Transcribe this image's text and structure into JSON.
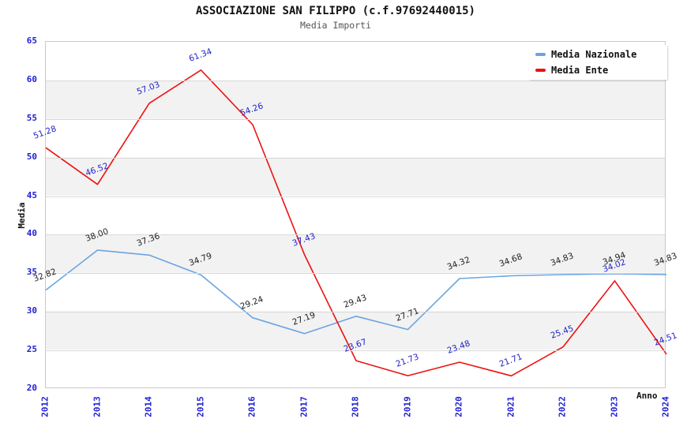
{
  "header": {
    "title": "ASSOCIAZIONE SAN FILIPPO (c.f.97692440015)",
    "subtitle": "Media Importi"
  },
  "chart_data": {
    "type": "line",
    "title": "ASSOCIAZIONE SAN FILIPPO (c.f.97692440015)",
    "subtitle": "Media Importi",
    "xlabel": "Anno",
    "ylabel": "Media",
    "ylim": [
      20,
      65
    ],
    "y_ticks": [
      20,
      25,
      30,
      35,
      40,
      45,
      50,
      55,
      60,
      65
    ],
    "x": [
      "2012",
      "2013",
      "2014",
      "2015",
      "2016",
      "2017",
      "2018",
      "2019",
      "2020",
      "2021",
      "2022",
      "2023",
      "2024"
    ],
    "grid": "horizontal-bands",
    "legend_position": "top-right",
    "series": [
      {
        "name": "Media Nazionale",
        "color": "#6aa5e0",
        "value_label_color": "#222222",
        "values": [
          32.82,
          38.0,
          37.36,
          34.79,
          29.24,
          27.19,
          29.43,
          27.71,
          34.32,
          34.68,
          34.83,
          34.94,
          34.83
        ],
        "labels": [
          "32.82",
          "38.00",
          "37.36",
          "34.79",
          "29.24",
          "27.19",
          "29.43",
          "27.71",
          "34.32",
          "34.68",
          "34.83",
          "34.94",
          "34.83"
        ]
      },
      {
        "name": "Media Ente",
        "color": "#ee1111",
        "value_label_color": "#1f1fc8",
        "values": [
          51.28,
          46.52,
          57.03,
          61.34,
          54.26,
          37.43,
          23.67,
          21.73,
          23.48,
          21.71,
          25.45,
          34.02,
          24.51
        ],
        "labels": [
          "51.28",
          "46.52",
          "57.03",
          "61.34",
          "54.26",
          "37.43",
          "23.67",
          "21.73",
          "23.48",
          "21.71",
          "25.45",
          "34.02",
          "24.51"
        ]
      }
    ],
    "colors": {
      "tick_label": "#1f1fd6",
      "band_gray": "#f2f2f2",
      "gridline": "#d9d9d9",
      "plot_border": "#c9c9c9"
    }
  }
}
